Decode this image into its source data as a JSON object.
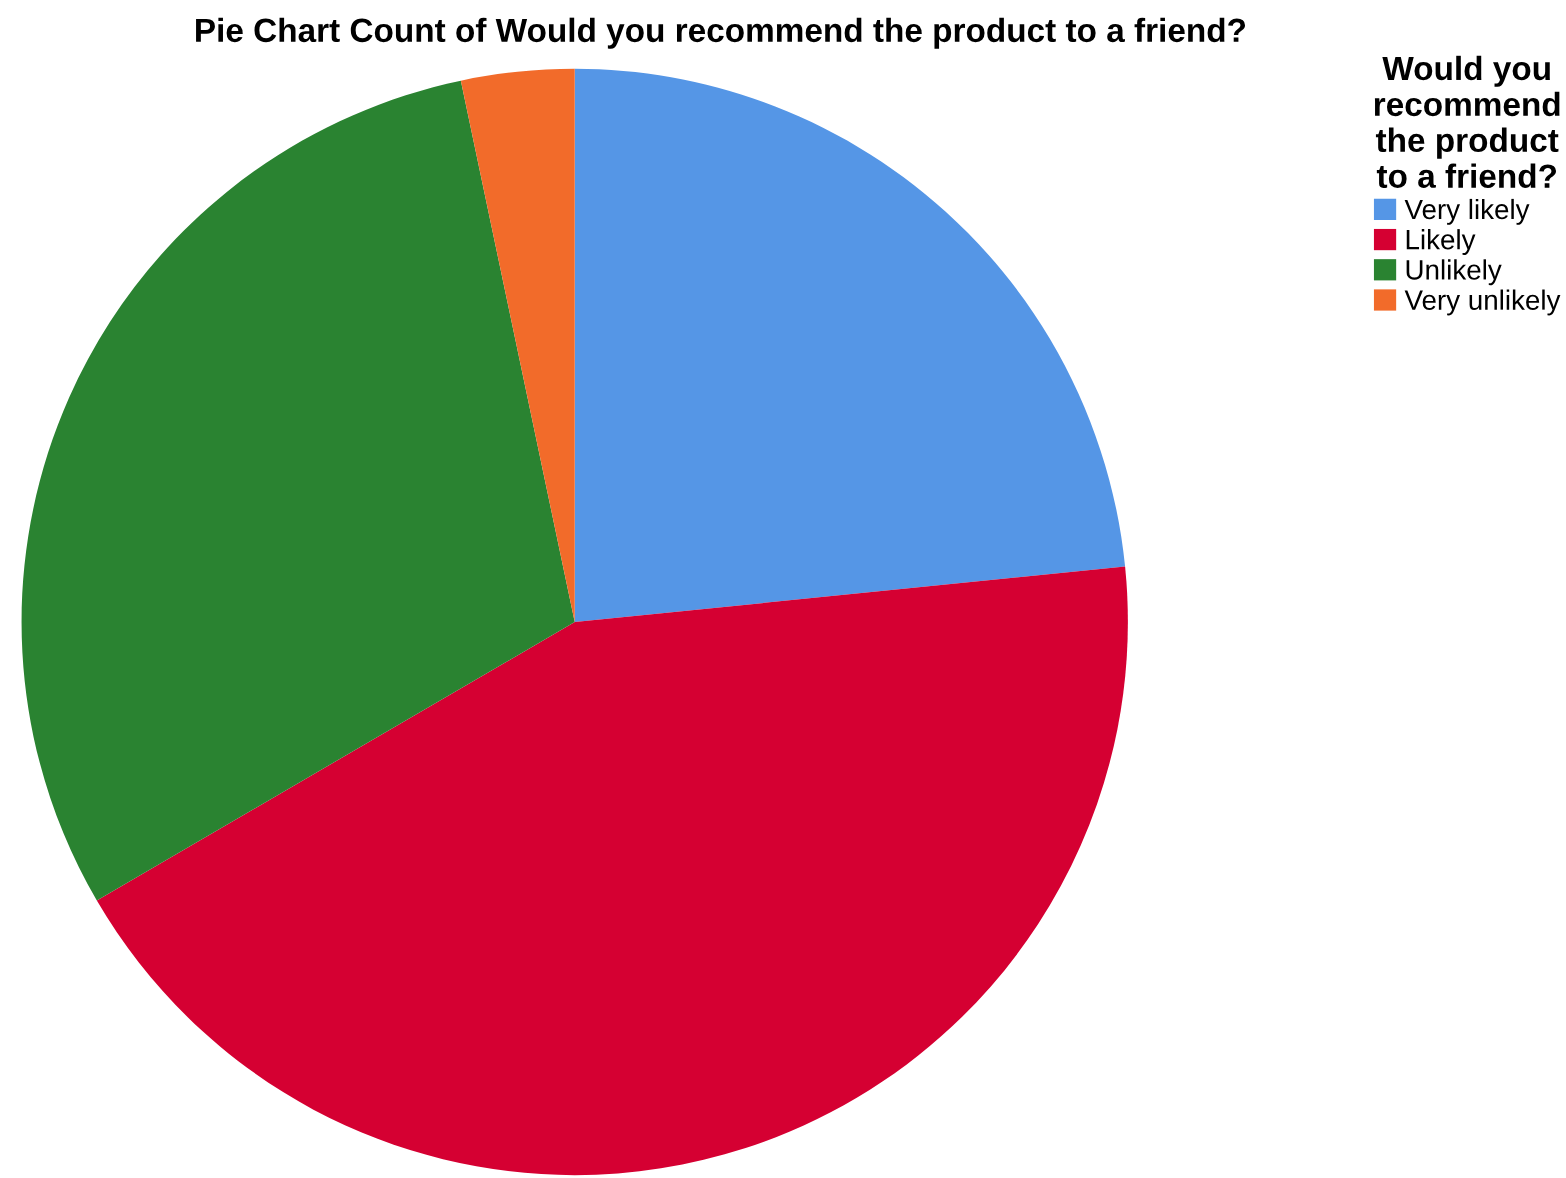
{
  "chart_data": {
    "type": "pie",
    "title": "Pie Chart Count of Would you recommend the product to a friend?",
    "legend_title": "Would you\nrecommend\nthe product\nto a friend?",
    "categories": [
      "Very likely",
      "Likely",
      "Unlikely",
      "Very unlikely"
    ],
    "values": [
      23.4,
      43.2,
      30.1,
      3.3
    ],
    "colors": [
      "#5596e6",
      "#d50032",
      "#2a8331",
      "#f26b2a"
    ],
    "legend": "top right"
  }
}
